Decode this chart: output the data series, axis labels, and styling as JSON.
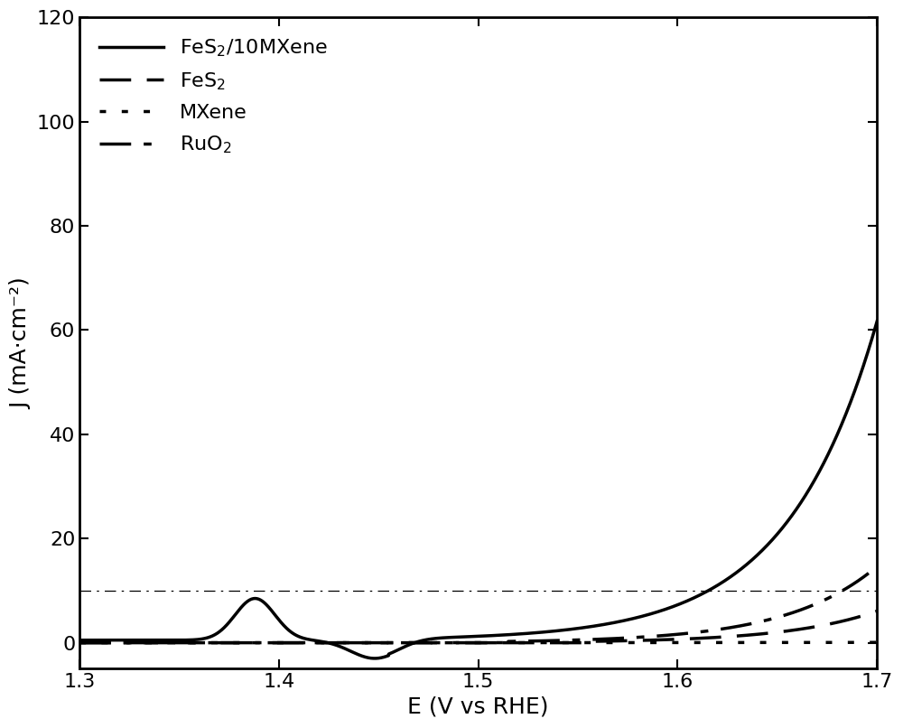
{
  "title": "",
  "xlabel": "E (V vs RHE)",
  "ylabel": "J (mA·cm⁻²)",
  "xlim": [
    1.3,
    1.7
  ],
  "ylim": [
    -5,
    120
  ],
  "yticks": [
    0,
    20,
    40,
    60,
    80,
    100,
    120
  ],
  "xticks": [
    1.3,
    1.4,
    1.5,
    1.6,
    1.7
  ],
  "reference_line_y": 10,
  "line_color": "#000000",
  "background_color": "#ffffff",
  "legend_labels": [
    "FeS$_2$/10MXene",
    "FeS$_2$",
    "MXene",
    "RuO$_2$"
  ],
  "linewidth": 2.5,
  "ref_linewidth": 0.9,
  "fontsize": 18
}
